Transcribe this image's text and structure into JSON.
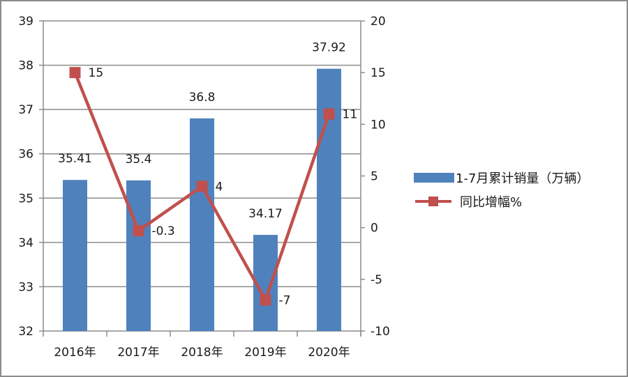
{
  "chart_data": {
    "type": "bar+line",
    "title": "",
    "categories": [
      "2016年",
      "2017年",
      "2018年",
      "2019年",
      "2020年"
    ],
    "series": [
      {
        "name": "1-7月累计销量（万辆）",
        "type": "bar",
        "axis": "left",
        "color": "#4f81bd",
        "values": [
          35.41,
          35.4,
          36.8,
          34.17,
          37.92
        ],
        "labels": [
          "35.41",
          "35.4",
          "36.8",
          "34.17",
          "37.92"
        ]
      },
      {
        "name": "同比增幅%",
        "type": "line",
        "axis": "right",
        "color": "#c0504d",
        "values": [
          15,
          -0.3,
          4,
          -7,
          11
        ],
        "labels": [
          "15",
          "-0.3",
          "4",
          "-7",
          "11"
        ]
      }
    ],
    "y_left": {
      "min": 32,
      "max": 39,
      "ticks": [
        "32",
        "33",
        "34",
        "35",
        "36",
        "37",
        "38",
        "39"
      ]
    },
    "y_right": {
      "min": -10,
      "max": 20,
      "ticks": [
        "-10",
        "-5",
        "0",
        "5",
        "10",
        "15",
        "20"
      ]
    },
    "xlabel": "",
    "ylabel": "",
    "grid": true,
    "legend_position": "right"
  },
  "legend": {
    "bar_label": "1-7月累计销量（万辆）",
    "line_label": "同比增幅%"
  }
}
